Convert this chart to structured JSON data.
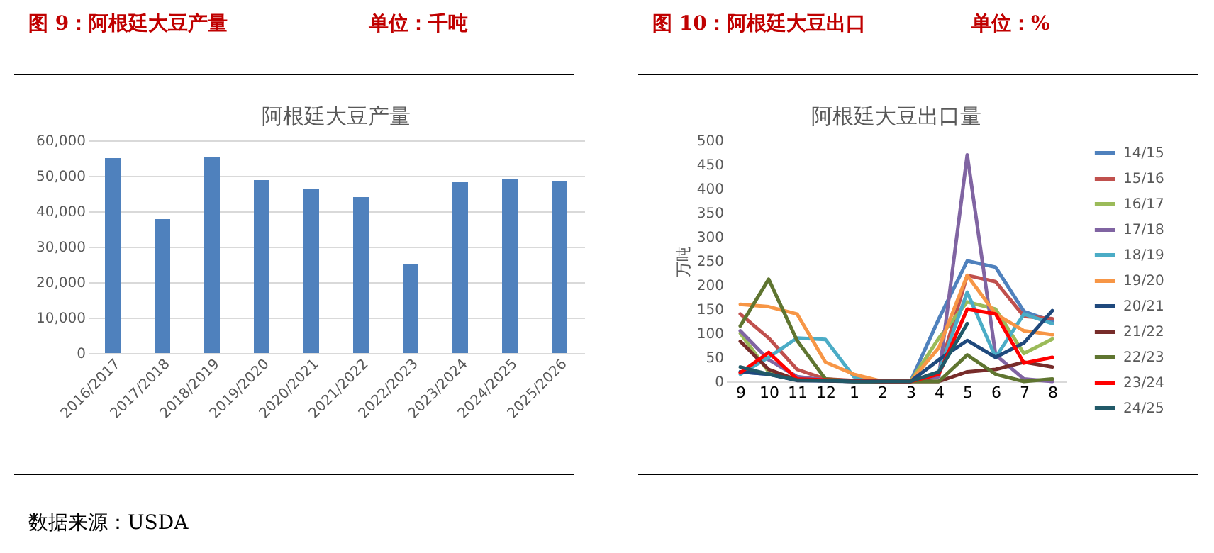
{
  "chart_data": [
    {
      "type": "bar",
      "title": "阿根廷大豆产量",
      "categories": [
        "2016/2017",
        "2017/2018",
        "2018/2019",
        "2019/2020",
        "2020/2021",
        "2021/2022",
        "2022/2023",
        "2023/2024",
        "2024/2025",
        "2025/2026"
      ],
      "values": [
        55000,
        37800,
        55300,
        48800,
        46200,
        44000,
        25000,
        48200,
        49000,
        48600
      ],
      "color": "#4f81bd",
      "ylim": [
        0,
        60000
      ],
      "yticks": [
        0,
        {
          "value": 10000,
          "label": "10,000"
        },
        {
          "value": 20000,
          "label": "20,000"
        },
        {
          "value": 30000,
          "label": "30,000"
        },
        {
          "value": 40000,
          "label": "40,000"
        },
        {
          "value": 50000,
          "label": "50,000"
        },
        {
          "value": 60000,
          "label": "60,000"
        }
      ],
      "grid": "y",
      "annotations": [
        "图 9：阿根廷大豆产量",
        "单位：千吨",
        "数据来源：USDA"
      ]
    },
    {
      "type": "line",
      "title": "阿根廷大豆出口量",
      "ylabel": "万吨",
      "categories": [
        "9",
        "10",
        "11",
        "12",
        "1",
        "2",
        "3",
        "4",
        "5",
        "6",
        "7",
        "8"
      ],
      "ylim": [
        0,
        500
      ],
      "yticks": [
        0,
        50,
        100,
        150,
        200,
        250,
        300,
        350,
        400,
        450,
        500
      ],
      "grid": false,
      "legend": "right",
      "marker": "none",
      "series": [
        {
          "name": "14/15",
          "color": "#4f81bd",
          "values": [
            20,
            15,
            5,
            3,
            2,
            0,
            0,
            130,
            250,
            237,
            145,
            125
          ]
        },
        {
          "name": "15/16",
          "color": "#c0504d",
          "values": [
            140,
            90,
            25,
            5,
            2,
            0,
            0,
            20,
            220,
            207,
            135,
            130
          ]
        },
        {
          "name": "16/17",
          "color": "#9bbb59",
          "values": [
            100,
            20,
            5,
            2,
            1,
            0,
            0,
            90,
            165,
            150,
            58,
            88
          ]
        },
        {
          "name": "17/18",
          "color": "#8064a2",
          "values": [
            105,
            45,
            10,
            3,
            1,
            0,
            0,
            10,
            470,
            55,
            5,
            0
          ]
        },
        {
          "name": "18/19",
          "color": "#4bacc6",
          "values": [
            15,
            50,
            90,
            87,
            10,
            0,
            0,
            20,
            185,
            50,
            140,
            120
          ]
        },
        {
          "name": "19/20",
          "color": "#f79646",
          "values": [
            160,
            155,
            140,
            40,
            15,
            0,
            0,
            70,
            220,
            140,
            105,
            97
          ]
        },
        {
          "name": "20/21",
          "color": "#1f497d",
          "values": [
            20,
            15,
            2,
            1,
            0,
            0,
            0,
            45,
            85,
            50,
            80,
            147
          ]
        },
        {
          "name": "21/22",
          "color": "#772c2a",
          "values": [
            83,
            25,
            3,
            2,
            0,
            0,
            0,
            0,
            20,
            25,
            40,
            30
          ]
        },
        {
          "name": "22/23",
          "color": "#5f7530",
          "values": [
            115,
            212,
            85,
            5,
            0,
            0,
            0,
            0,
            55,
            15,
            0,
            5
          ]
        },
        {
          "name": "23/24",
          "color": "#ff0000",
          "values": [
            18,
            60,
            5,
            3,
            2,
            0,
            0,
            15,
            150,
            140,
            38,
            50
          ]
        },
        {
          "name": "24/25",
          "color": "#215968",
          "values": [
            30,
            15,
            3,
            2,
            0,
            0,
            0,
            20,
            120,
            null,
            null,
            null
          ]
        }
      ],
      "annotations": [
        "图 10：阿根廷大豆出口",
        "单位：%"
      ]
    }
  ]
}
